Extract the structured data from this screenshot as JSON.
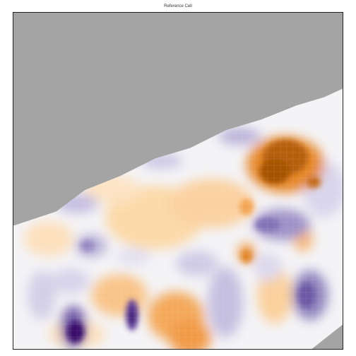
{
  "figure": {
    "title": "Reference Cell"
  },
  "colors": {
    "background_mask": "#a4a4a4",
    "orange_strong": "#a65306",
    "orange_mid": "#f1a34f",
    "orange_light": "#fcd9a8",
    "neutral": "#f4f3f6",
    "purple_light": "#cdc9e4",
    "purple_mid": "#8a7fbb",
    "purple_strong": "#3b0f6b"
  }
}
